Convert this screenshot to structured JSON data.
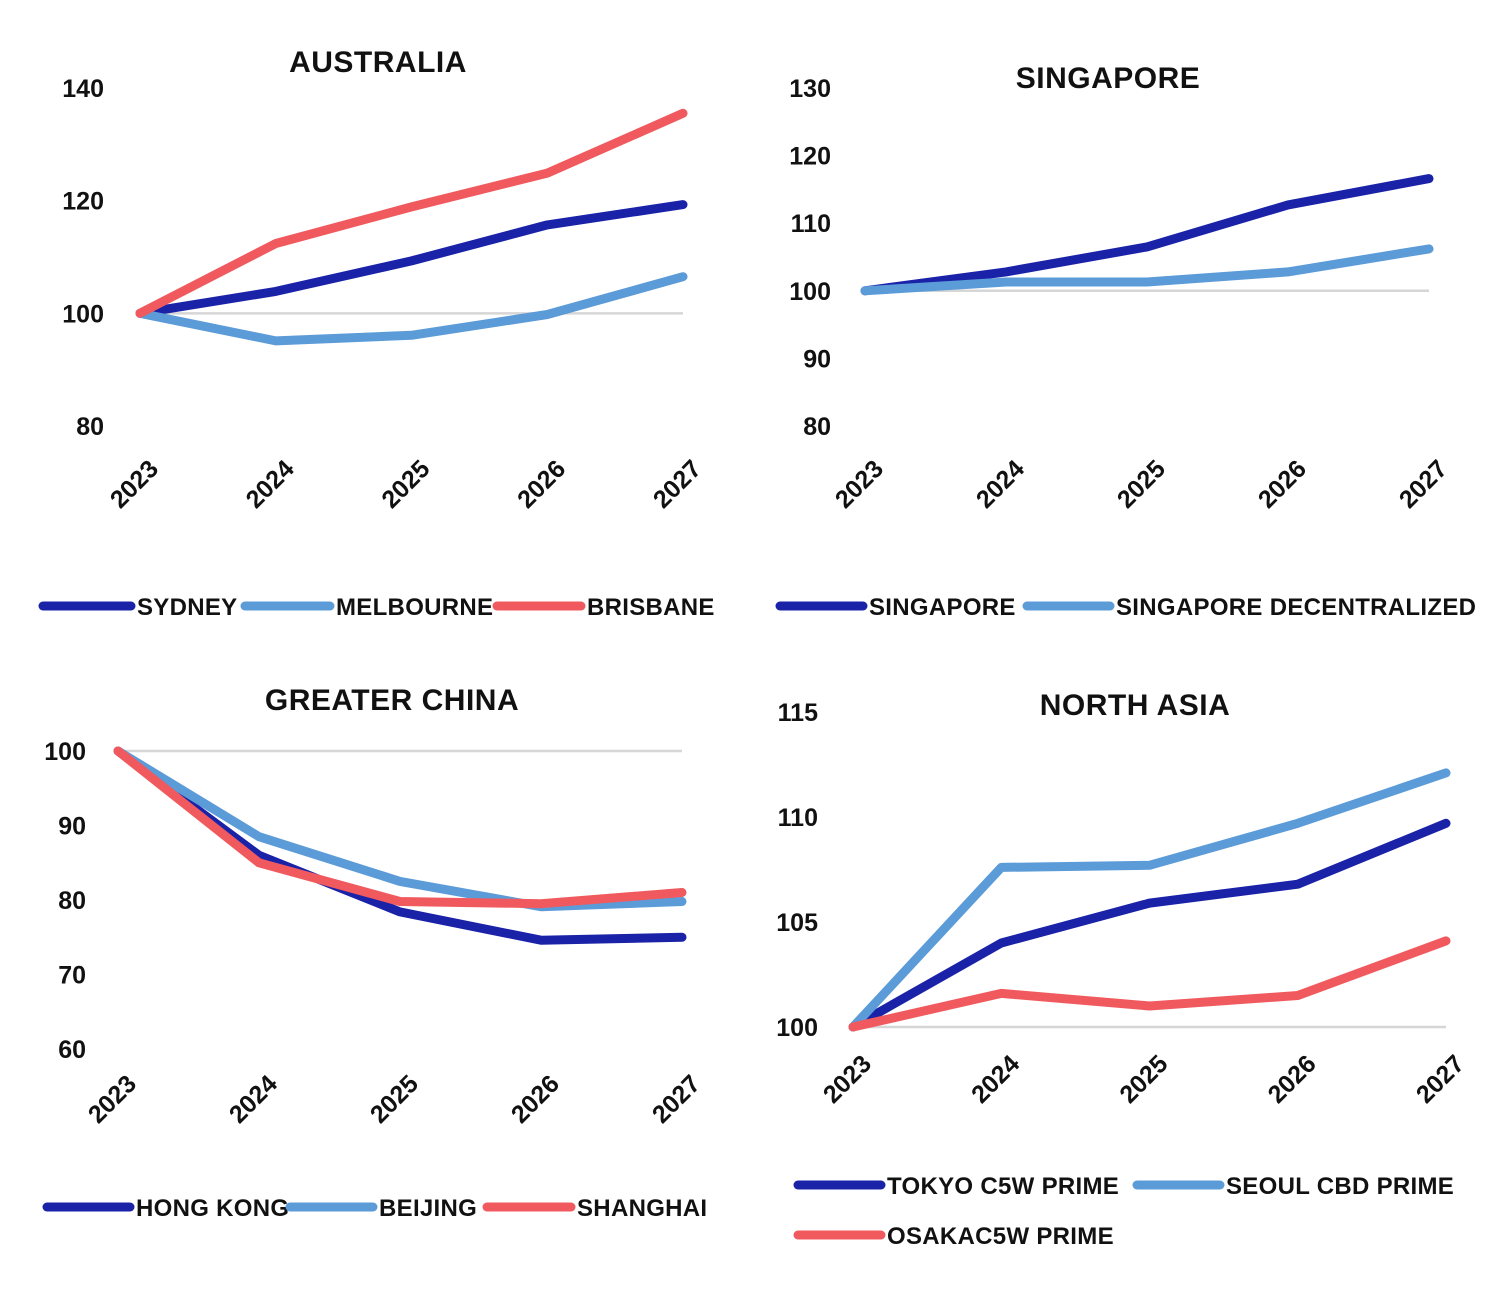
{
  "colors": {
    "dark_blue": "#1a22a8",
    "light_blue": "#5b9bd8",
    "coral": "#f05a5e"
  },
  "chart_data": [
    {
      "type": "line",
      "title": "AUSTRALIA",
      "x": [
        "2023",
        "2024",
        "2025",
        "2026",
        "2027"
      ],
      "ylim": [
        80,
        140
      ],
      "yticks": [
        "140",
        "120",
        "100",
        "80"
      ],
      "baseline": 100,
      "grid": false,
      "legend_position": "bottom",
      "series": [
        {
          "name": "SYDNEY",
          "color": "#1a22a8",
          "values": [
            100,
            103.9,
            109.3,
            115.7,
            119.3
          ]
        },
        {
          "name": "MELBOURNE",
          "color": "#5b9bd8",
          "values": [
            100,
            95.1,
            96.1,
            99.8,
            106.5
          ]
        },
        {
          "name": "BRISBANE",
          "color": "#f05a5e",
          "values": [
            100,
            112.4,
            118.9,
            124.9,
            135.5
          ]
        }
      ]
    },
    {
      "type": "line",
      "title": "SINGAPORE",
      "x": [
        "2023",
        "2024",
        "2025",
        "2026",
        "2027"
      ],
      "ylim": [
        80,
        130
      ],
      "yticks": [
        "130",
        "120",
        "110",
        "100",
        "90",
        "80"
      ],
      "baseline": 100,
      "grid": false,
      "legend_position": "bottom",
      "series": [
        {
          "name": "SINGAPORE",
          "color": "#1a22a8",
          "values": [
            100,
            102.8,
            106.5,
            112.7,
            116.6
          ]
        },
        {
          "name": "SINGAPORE DECENTRALIZED",
          "color": "#5b9bd8",
          "values": [
            100,
            101.3,
            101.3,
            102.8,
            106.2
          ]
        }
      ]
    },
    {
      "type": "line",
      "title": "GREATER CHINA",
      "x": [
        "2023",
        "2024",
        "2025",
        "2026",
        "2027"
      ],
      "ylim": [
        60,
        100
      ],
      "yticks": [
        "100",
        "90",
        "80",
        "70",
        "60"
      ],
      "baseline": 100,
      "grid": false,
      "legend_position": "bottom",
      "series": [
        {
          "name": "HONG KONG",
          "color": "#1a22a8",
          "values": [
            100,
            86.0,
            78.4,
            74.6,
            75.0
          ]
        },
        {
          "name": "BEIJING",
          "color": "#5b9bd8",
          "values": [
            100,
            88.5,
            82.5,
            79.1,
            79.8
          ]
        },
        {
          "name": "SHANGHAI",
          "color": "#f05a5e",
          "values": [
            100,
            85.0,
            79.8,
            79.5,
            81.0
          ]
        }
      ]
    },
    {
      "type": "line",
      "title": "NORTH ASIA",
      "x": [
        "2023",
        "2024",
        "2025",
        "2026",
        "2027"
      ],
      "ylim": [
        100,
        115
      ],
      "yticks": [
        "115",
        "110",
        "105",
        "100"
      ],
      "baseline": 100,
      "grid": false,
      "legend_position": "bottom",
      "series": [
        {
          "name": "TOKYO C5W PRIME",
          "color": "#1a22a8",
          "values": [
            100,
            104.0,
            105.9,
            106.8,
            109.7
          ]
        },
        {
          "name": "SEOUL CBD PRIME",
          "color": "#5b9bd8",
          "values": [
            100,
            107.6,
            107.7,
            109.7,
            112.1
          ]
        },
        {
          "name": "OSAKAC5W PRIME",
          "color": "#f05a5e",
          "values": [
            100,
            101.6,
            101.0,
            101.5,
            104.1
          ]
        }
      ]
    }
  ]
}
